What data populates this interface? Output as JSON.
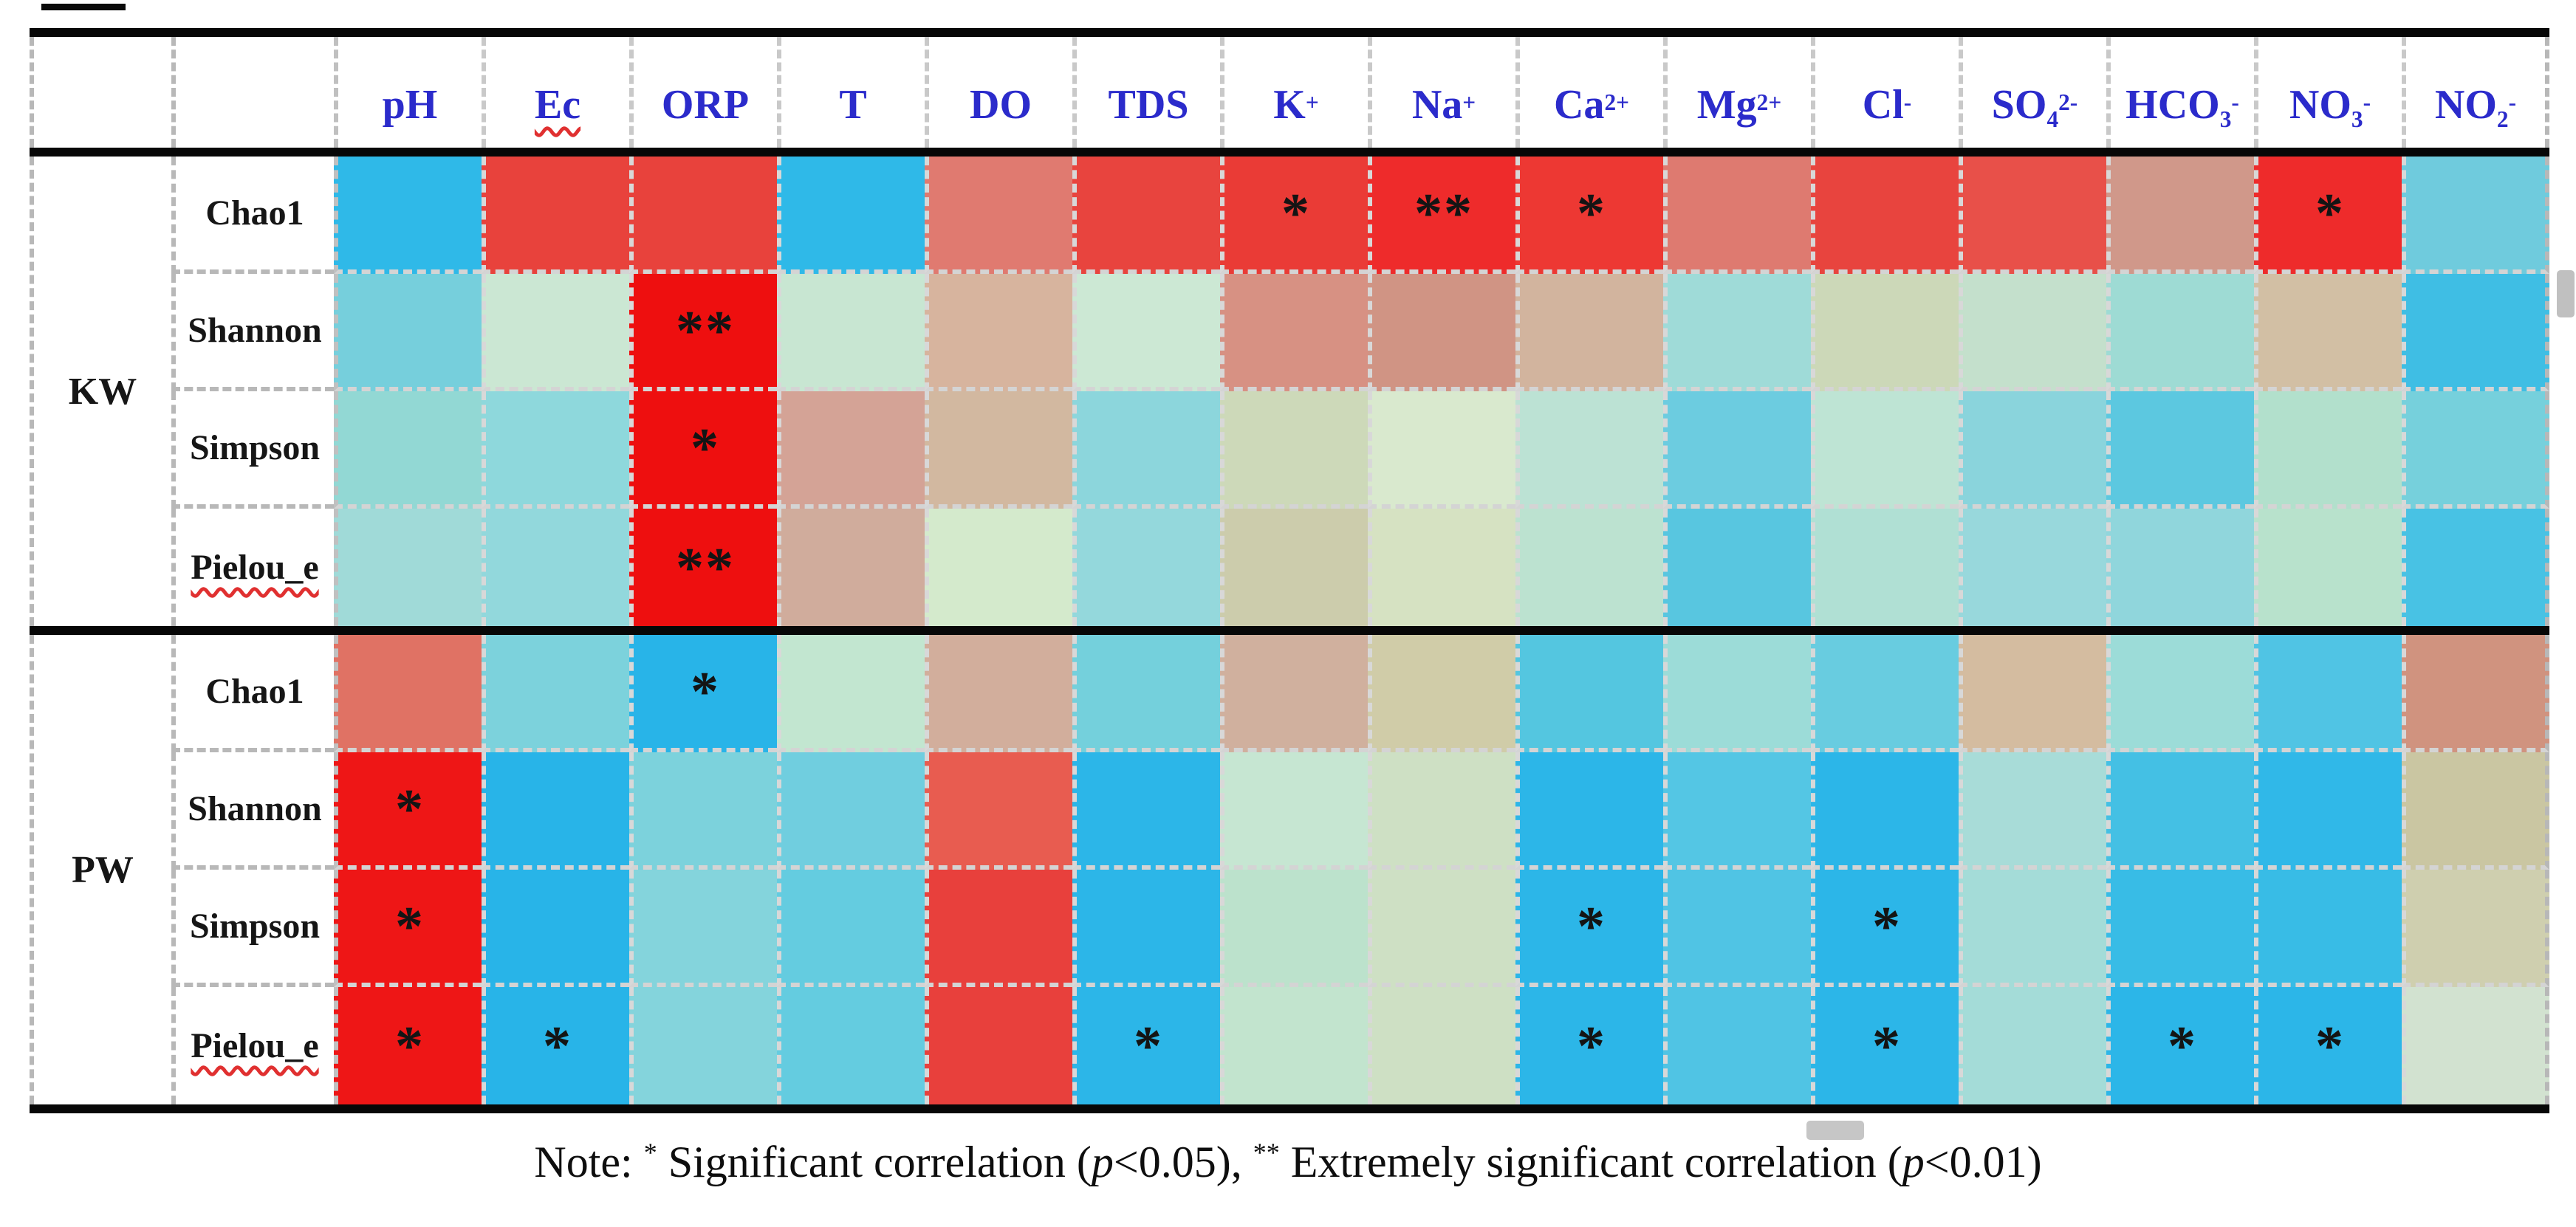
{
  "chart_data": {
    "type": "heatmap",
    "x_labels": [
      "pH",
      "Ec",
      "ORP",
      "T",
      "DO",
      "TDS",
      "K+",
      "Na+",
      "Ca2+",
      "Mg2+",
      "Cl-",
      "SO42-",
      "HCO3-",
      "NO3-",
      "NO2-"
    ],
    "y_labels": [
      "KW Chao1",
      "KW Shannon",
      "KW Simpson",
      "KW Pielou_e",
      "PW Chao1",
      "PW Shannon",
      "PW Simpson",
      "PW Pielou_e"
    ],
    "cell_colors": [
      [
        "#2FB9E8",
        "#E8423C",
        "#E8423C",
        "#2FB9E8",
        "#E07A70",
        "#E8443E",
        "#EA3B36",
        "#EE2B2B",
        "#ED3833",
        "#DE7A70",
        "#E8443E",
        "#E85049",
        "#D0988A",
        "#EE2B2B",
        "#6FCBDD"
      ],
      [
        "#76CFDC",
        "#CBE7D3",
        "#EE0F0F",
        "#C8E6D2",
        "#D7B49E",
        "#CCE8D4",
        "#D79183",
        "#D09484",
        "#D2B49E",
        "#9FDBD8",
        "#CCD8B8",
        "#C4E0CC",
        "#9EDBD4",
        "#D2BFA4",
        "#3FBEE4"
      ],
      [
        "#92D8D4",
        "#8ED8DC",
        "#EE0F0F",
        "#D4A396",
        "#D2B8A0",
        "#8CD6DC",
        "#CDD9B9",
        "#D9E9CE",
        "#BCE2D4",
        "#6CCCE0",
        "#BEE4D4",
        "#8AD4DC",
        "#5CC8E0",
        "#B2E0CC",
        "#76D0DC"
      ],
      [
        "#A0DAD8",
        "#92D8DC",
        "#EE0F0F",
        "#D0AC9C",
        "#D4EACC",
        "#94D8DC",
        "#CCCCAC",
        "#D6E2C2",
        "#BCE2D0",
        "#58C6E0",
        "#B0E0D4",
        "#98D8DC",
        "#90D6DC",
        "#B8E2CC",
        "#48C2E4"
      ],
      [
        "#E07264",
        "#7CD2DC",
        "#28B4E8",
        "#C2E6D0",
        "#D2AE9C",
        "#74D0DC",
        "#D0B09E",
        "#D0CCA8",
        "#54C6E0",
        "#9CDCD8",
        "#68CCE0",
        "#D4BCA0",
        "#9CDCD8",
        "#50C4E4",
        "#D0937F"
      ],
      [
        "#EE1616",
        "#28B4E8",
        "#7CD2DC",
        "#70CEDF",
        "#E85C50",
        "#2CB6E8",
        "#C6E6D2",
        "#CEE0C4",
        "#2CB6E8",
        "#54C6E4",
        "#2CB6E8",
        "#A8DCD8",
        "#44C0E4",
        "#30B8E8",
        "#CAC6A2"
      ],
      [
        "#EE1616",
        "#28B4E8",
        "#84D4DC",
        "#64CCE0",
        "#E8403C",
        "#2CB6E8",
        "#BCE2CC",
        "#CEE0C4",
        "#2CB6E8",
        "#50C4E4",
        "#2CB6E8",
        "#A4DCD8",
        "#38BCE6",
        "#38BCE6",
        "#CFCFAF"
      ],
      [
        "#EE1616",
        "#28B4E8",
        "#84D4DC",
        "#64CCE0",
        "#E8403C",
        "#2CB6E8",
        "#C2E4CE",
        "#CEE0C4",
        "#2CB6E8",
        "#50C4E4",
        "#2CB6E8",
        "#A4DCD8",
        "#2CB6E8",
        "#2CB6E8",
        "#D2E2D0"
      ]
    ],
    "significance": [
      [
        "",
        "",
        "",
        "",
        "",
        "",
        "*",
        "**",
        "*",
        "",
        "",
        "",
        "",
        "*",
        ""
      ],
      [
        "",
        "",
        "**",
        "",
        "",
        "",
        "",
        "",
        "",
        "",
        "",
        "",
        "",
        "",
        ""
      ],
      [
        "",
        "",
        "*",
        "",
        "",
        "",
        "",
        "",
        "",
        "",
        "",
        "",
        "",
        "",
        ""
      ],
      [
        "",
        "",
        "**",
        "",
        "",
        "",
        "",
        "",
        "",
        "",
        "",
        "",
        "",
        "",
        ""
      ],
      [
        "",
        "",
        "*",
        "",
        "",
        "",
        "",
        "",
        "",
        "",
        "",
        "",
        "",
        "",
        ""
      ],
      [
        "*",
        "",
        "",
        "",
        "",
        "",
        "",
        "",
        "",
        "",
        "",
        "",
        "",
        "",
        ""
      ],
      [
        "*",
        "",
        "",
        "",
        "",
        "",
        "",
        "",
        "*",
        "",
        "*",
        "",
        "",
        "",
        ""
      ],
      [
        "*",
        "*",
        "",
        "",
        "",
        "*",
        "",
        "",
        "*",
        "",
        "*",
        "",
        "*",
        "*",
        ""
      ]
    ],
    "note": "Note: * Significant correlation (p<0.05), ** Extremely significant correlation (p<0.01)"
  },
  "table": {
    "headers": [
      {
        "id": "ph",
        "t": "pH"
      },
      {
        "id": "ec",
        "t": "Ec",
        "misspelled": true
      },
      {
        "id": "orp",
        "t": "ORP"
      },
      {
        "id": "t",
        "t": "T"
      },
      {
        "id": "do",
        "t": "DO"
      },
      {
        "id": "tds",
        "t": "TDS"
      },
      {
        "id": "k",
        "t": "K",
        "sup": "+"
      },
      {
        "id": "na",
        "t": "Na",
        "sup": "+"
      },
      {
        "id": "ca",
        "t": "Ca",
        "sup": "2+"
      },
      {
        "id": "mg",
        "t": "Mg",
        "sup": "2+"
      },
      {
        "id": "cl",
        "t": "Cl",
        "sup": "-"
      },
      {
        "id": "so4",
        "t": "SO",
        "sub": "4",
        "sup": "2-"
      },
      {
        "id": "hco3",
        "t": "HCO",
        "sub": "3",
        "sup": "-"
      },
      {
        "id": "no3",
        "t": "NO",
        "sub": "3",
        "sup": "-"
      },
      {
        "id": "no2",
        "t": "NO",
        "sub": "2",
        "sup": "-"
      }
    ],
    "groups": [
      {
        "id": "kw",
        "label": "KW",
        "rows": [
          {
            "id": "chao1",
            "label": "Chao1"
          },
          {
            "id": "shannon",
            "label": "Shannon"
          },
          {
            "id": "simpson",
            "label": "Simpson"
          },
          {
            "id": "pielou-e",
            "label": "Pielou_e",
            "misspelled": true
          }
        ]
      },
      {
        "id": "pw",
        "label": "PW",
        "rows": [
          {
            "id": "chao1",
            "label": "Chao1"
          },
          {
            "id": "shannon",
            "label": "Shannon"
          },
          {
            "id": "simpson",
            "label": "Simpson"
          },
          {
            "id": "pielou-e",
            "label": "Pielou_e",
            "misspelled": true
          }
        ]
      }
    ]
  },
  "note_segments": [
    {
      "t": "Note: "
    },
    {
      "t": "*",
      "sup": true
    },
    {
      "t": " Significant correlation ("
    },
    {
      "t": "p",
      "i": true
    },
    {
      "t": "<0.05), "
    },
    {
      "t": "**",
      "sup": true
    },
    {
      "t": " Extremely significant correlation ("
    },
    {
      "t": "p",
      "i": true
    },
    {
      "t": "<0.01)"
    }
  ],
  "style": {
    "header_text_color": "#2B2BCB",
    "label_text_color": "#161616",
    "border_black": "#070707",
    "label_grid_dash": "#b8b8b8",
    "cell_grid_dash": "#d6d6d6",
    "spellcheck_squiggle": "#E03030",
    "significance_marker_color": "#141414"
  }
}
